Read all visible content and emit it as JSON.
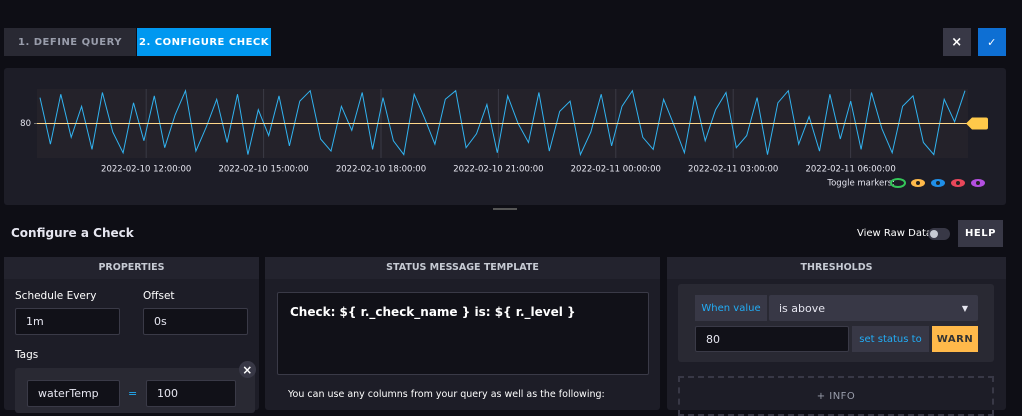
{
  "tabs": [
    "1. DEFINE QUERY",
    "2. CONFIGURE CHECK"
  ],
  "buttons": {
    "close": "×",
    "confirm": "✓"
  },
  "chart_data": {
    "type": "line",
    "color": "#31b3f0",
    "values": [
      95,
      68,
      97,
      72,
      90,
      65,
      98,
      75,
      63,
      92,
      70,
      96,
      66,
      85,
      99,
      64,
      78,
      94,
      69,
      97,
      62,
      88,
      73,
      96,
      67,
      93,
      99,
      71,
      64,
      90,
      76,
      98,
      65,
      95,
      70,
      62,
      97,
      83,
      68,
      94,
      99,
      66,
      74,
      91,
      63,
      96,
      80,
      69,
      98,
      64,
      87,
      93,
      62,
      75,
      97,
      67,
      90,
      99,
      72,
      65,
      94,
      79,
      63,
      96,
      70,
      88,
      98,
      66,
      73,
      95,
      62,
      92,
      99,
      68,
      84,
      64,
      97,
      71,
      93,
      65,
      98,
      77,
      63,
      90,
      96,
      69,
      62,
      94,
      81,
      99
    ],
    "ylim": [
      60,
      100
    ],
    "yticks": [
      80
    ],
    "xtick_labels": [
      "2022-02-10 12:00:00",
      "2022-02-10 15:00:00",
      "2022-02-10 18:00:00",
      "2022-02-10 21:00:00",
      "2022-02-11 00:00:00",
      "2022-02-11 03:00:00",
      "2022-02-11 06:00:00"
    ],
    "toggle_markers_label": "Toggle markers:"
  },
  "section_title": "Configure a Check",
  "view_raw_data": "View Raw Data",
  "help": "HELP",
  "properties": {
    "title": "PROPERTIES",
    "schedule_label": "Schedule Every",
    "schedule": "1m",
    "offset_label": "Offset",
    "offset": "0s",
    "tags_label": "Tags",
    "tags": [
      {
        "key": "waterTemp",
        "op": "=",
        "value": "100"
      }
    ],
    "remove": "×"
  },
  "status_message": {
    "title": "STATUS MESSAGE TEMPLATE",
    "template": "Check: ${ r._check_name } is: ${ r._level }",
    "hint": "You can use any columns from your query as well as the following:"
  },
  "thresholds": {
    "title": "THRESHOLDS",
    "condition_label": "When value",
    "operator": "is above",
    "value": 80,
    "set_status_label": "set status to",
    "level": "WARN",
    "add_info": "+ INFO"
  }
}
